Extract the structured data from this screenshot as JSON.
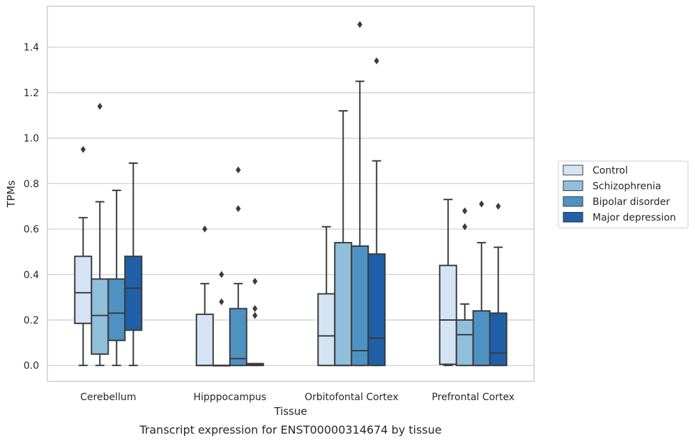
{
  "caption": "Transcript expression for ENST00000314674 by tissue",
  "chart_data": {
    "type": "boxplot",
    "xlabel": "Tissue",
    "ylabel": "TPMs",
    "ylim": [
      -0.07,
      1.58
    ],
    "yticks": [
      0.0,
      0.2,
      0.4,
      0.6,
      0.8,
      1.0,
      1.2,
      1.4
    ],
    "ytick_labels": [
      "0.0",
      "0.2",
      "0.4",
      "0.6",
      "0.8",
      "1.0",
      "1.2",
      "1.4"
    ],
    "grid": true,
    "legend_placement": "right",
    "categories": [
      "Cerebellum",
      "Hipppocampus",
      "Orbitofontal Cortex",
      "Prefrontal Cortex"
    ],
    "series": [
      {
        "name": "Control",
        "color": "#d4e4f4",
        "boxes": [
          {
            "min": 0.0,
            "q1": 0.185,
            "median": 0.32,
            "q3": 0.48,
            "max": 0.65,
            "outliers": [
              0.95
            ]
          },
          {
            "min": 0.0,
            "q1": 0.0,
            "median": 0.0,
            "q3": 0.225,
            "max": 0.36,
            "outliers": [
              0.6
            ]
          },
          {
            "min": 0.0,
            "q1": 0.0,
            "median": 0.13,
            "q3": 0.315,
            "max": 0.61,
            "outliers": []
          },
          {
            "min": 0.0,
            "q1": 0.005,
            "median": 0.2,
            "q3": 0.44,
            "max": 0.73,
            "outliers": []
          }
        ]
      },
      {
        "name": "Schizophrenia",
        "color": "#90bfdc",
        "boxes": [
          {
            "min": 0.0,
            "q1": 0.05,
            "median": 0.22,
            "q3": 0.38,
            "max": 0.72,
            "outliers": [
              1.14
            ]
          },
          {
            "min": 0.0,
            "q1": 0.0,
            "median": 0.0,
            "q3": 0.0,
            "max": 0.0,
            "outliers": [
              0.28,
              0.4
            ]
          },
          {
            "min": 0.0,
            "q1": 0.0,
            "median": 0.0,
            "q3": 0.54,
            "max": 1.12,
            "outliers": []
          },
          {
            "min": 0.0,
            "q1": 0.0,
            "median": 0.135,
            "q3": 0.2,
            "max": 0.27,
            "outliers": [
              0.61,
              0.68
            ]
          }
        ]
      },
      {
        "name": "Bipolar disorder",
        "color": "#4e92c4",
        "boxes": [
          {
            "min": 0.0,
            "q1": 0.11,
            "median": 0.23,
            "q3": 0.38,
            "max": 0.77,
            "outliers": []
          },
          {
            "min": 0.0,
            "q1": 0.0,
            "median": 0.03,
            "q3": 0.25,
            "max": 0.36,
            "outliers": [
              0.69,
              0.86
            ]
          },
          {
            "min": 0.0,
            "q1": 0.0,
            "median": 0.065,
            "q3": 0.525,
            "max": 1.25,
            "outliers": [
              1.5
            ]
          },
          {
            "min": 0.0,
            "q1": 0.0,
            "median": 0.0,
            "q3": 0.24,
            "max": 0.54,
            "outliers": [
              0.71
            ]
          }
        ]
      },
      {
        "name": "Major depression",
        "color": "#2060a8",
        "boxes": [
          {
            "min": 0.0,
            "q1": 0.155,
            "median": 0.34,
            "q3": 0.48,
            "max": 0.89,
            "outliers": []
          },
          {
            "min": 0.0,
            "q1": 0.0,
            "median": 0.003,
            "q3": 0.008,
            "max": 0.008,
            "outliers": [
              0.22,
              0.25,
              0.37
            ]
          },
          {
            "min": 0.0,
            "q1": 0.0,
            "median": 0.12,
            "q3": 0.49,
            "max": 0.9,
            "outliers": [
              1.34
            ]
          },
          {
            "min": 0.0,
            "q1": 0.0,
            "median": 0.055,
            "q3": 0.23,
            "max": 0.52,
            "outliers": [
              0.7
            ]
          }
        ]
      }
    ]
  }
}
